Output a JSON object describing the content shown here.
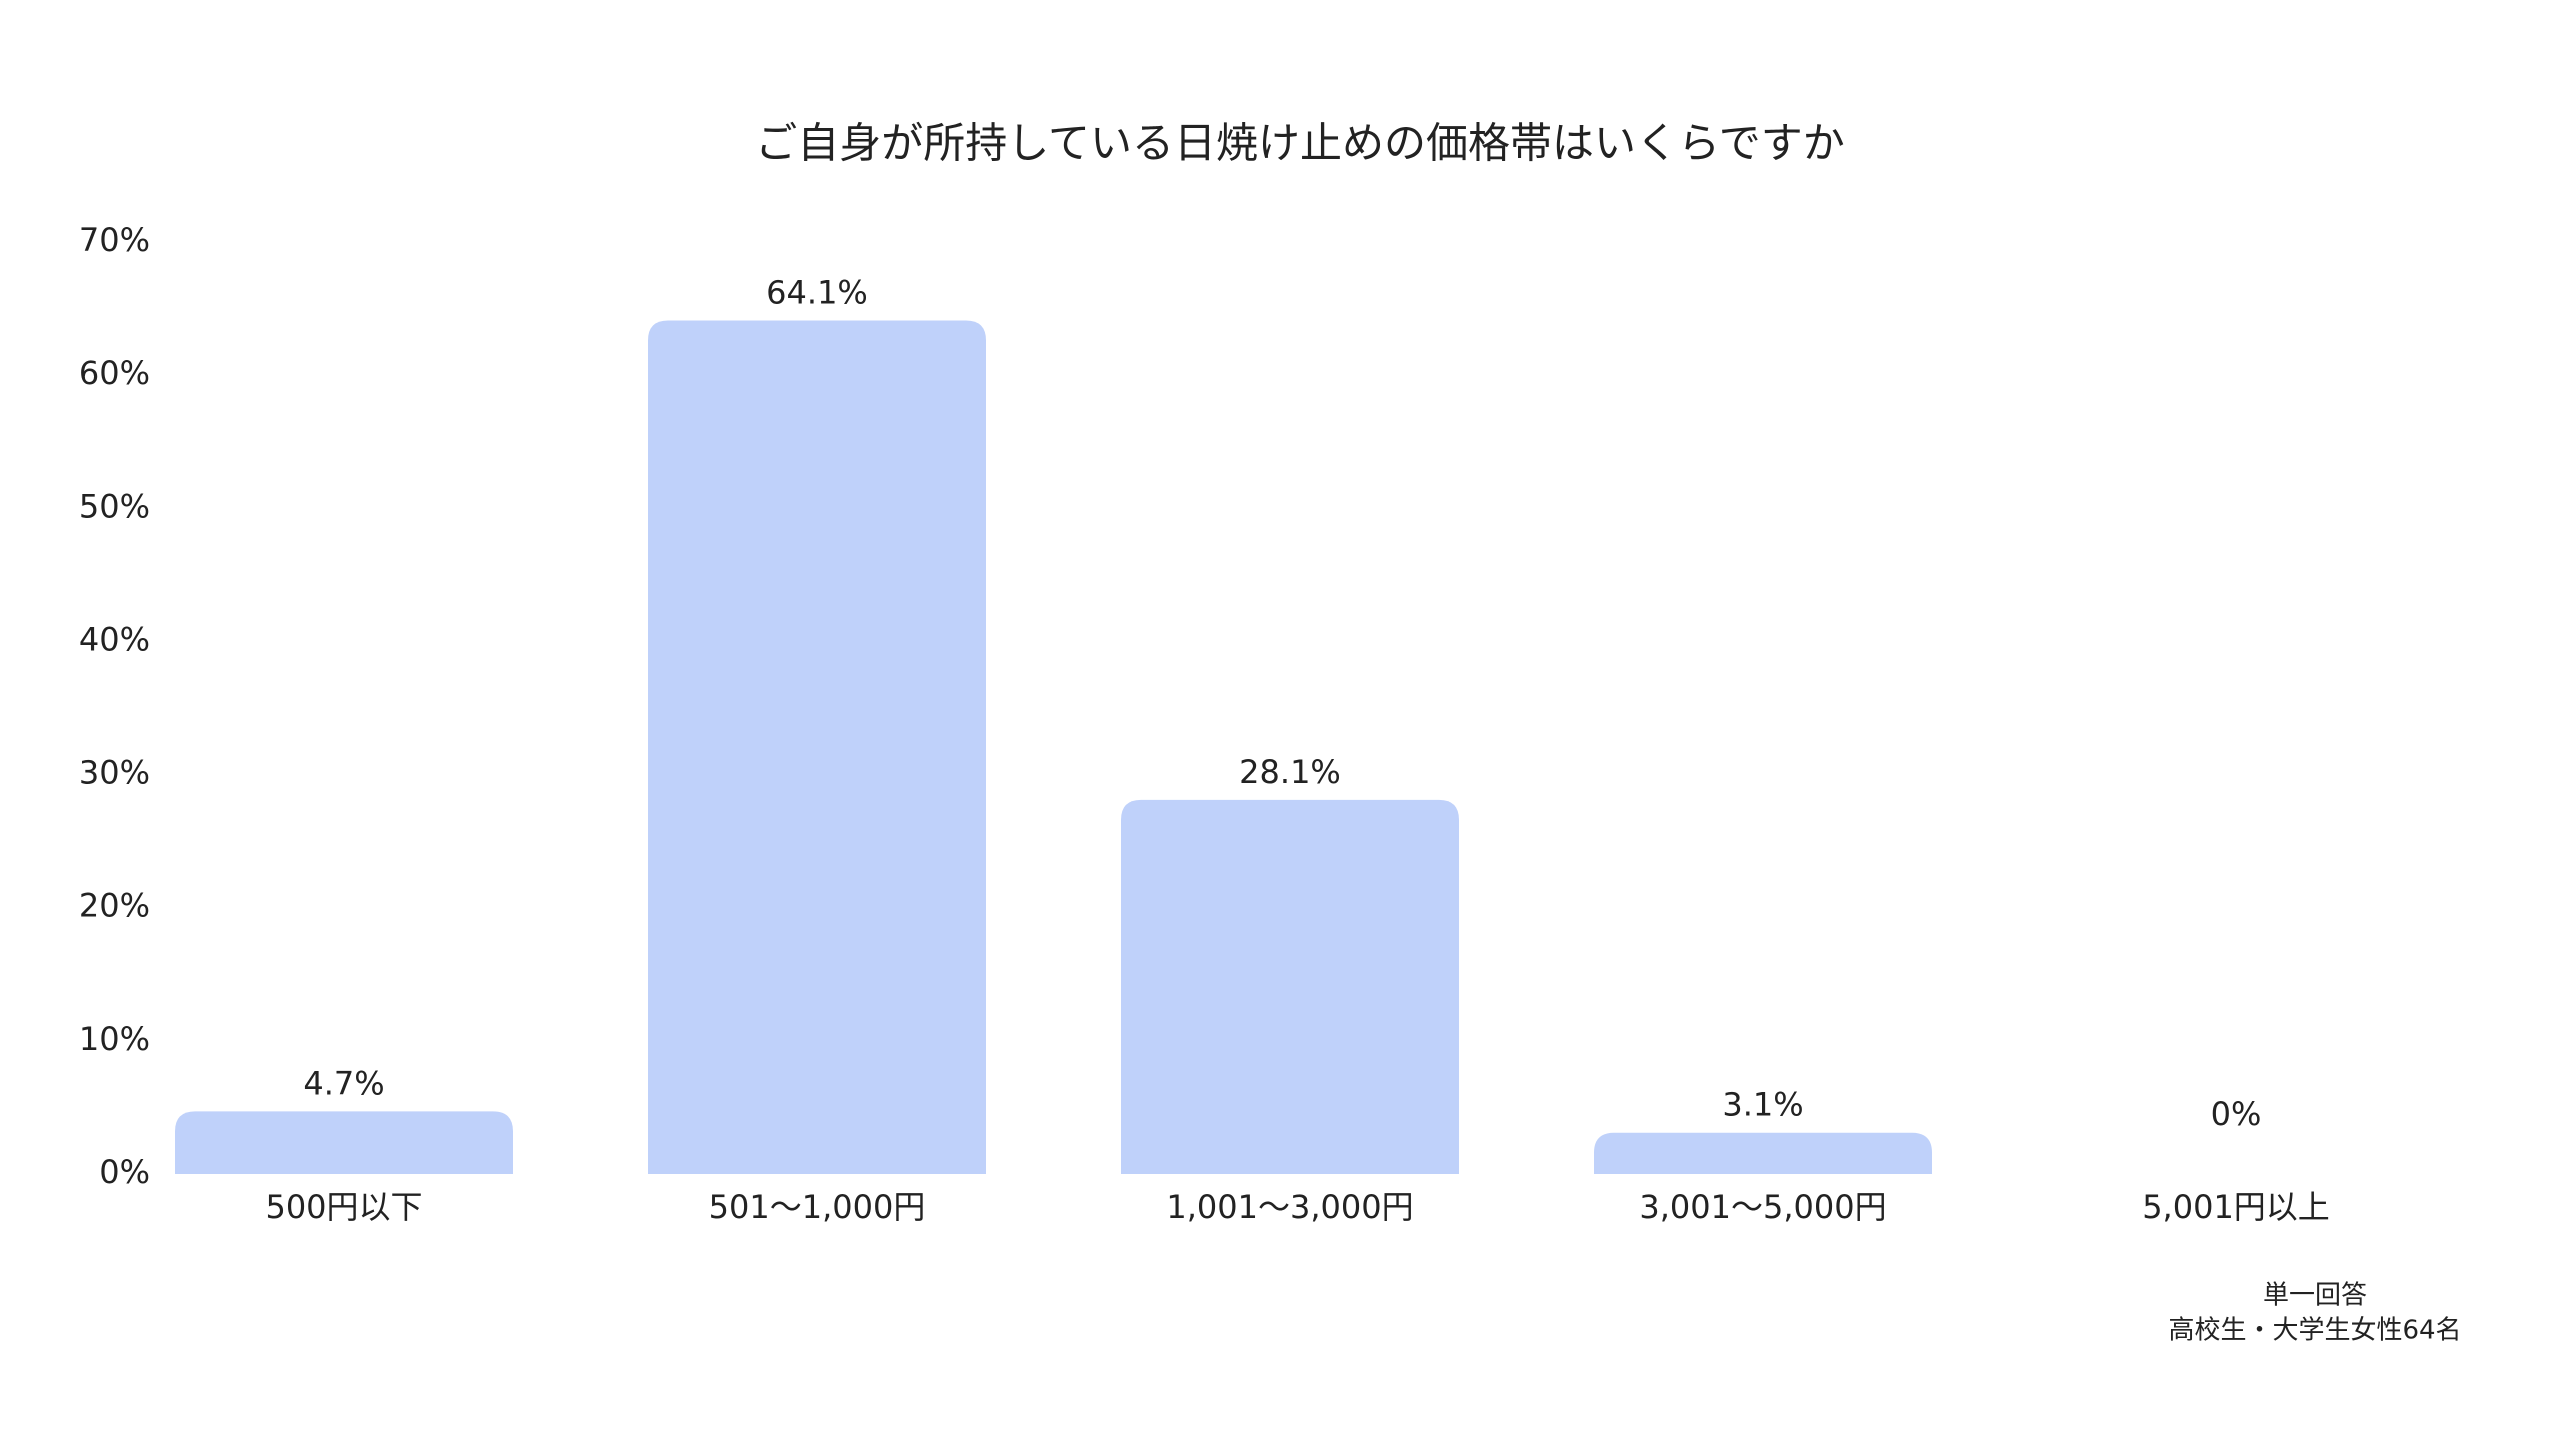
{
  "chart_data": {
    "type": "bar",
    "title": "ご自身が所持している日焼け止めの価格帯はいくらですか",
    "categories": [
      "500円以下",
      "501〜1,000円",
      "1,001〜3,000円",
      "3,001〜5,000円",
      "5,001円以上"
    ],
    "values": [
      4.7,
      64.1,
      28.1,
      3.1,
      0
    ],
    "value_labels": [
      "4.7%",
      "64.1%",
      "28.1%",
      "3.1%",
      "0%"
    ],
    "color": "#bfd1fa",
    "ylim": [
      0,
      70
    ],
    "yticks": [
      {
        "value": 0,
        "label": "0%"
      },
      {
        "value": 10,
        "label": "10%"
      },
      {
        "value": 20,
        "label": "20%"
      },
      {
        "value": 30,
        "label": "30%"
      },
      {
        "value": 40,
        "label": "40%"
      },
      {
        "value": 50,
        "label": "50%"
      },
      {
        "value": 60,
        "label": "60%"
      },
      {
        "value": 70,
        "label": "70%"
      }
    ],
    "grid": false,
    "annotations": [
      "単一回答",
      "高校生・大学生女性64名"
    ]
  }
}
